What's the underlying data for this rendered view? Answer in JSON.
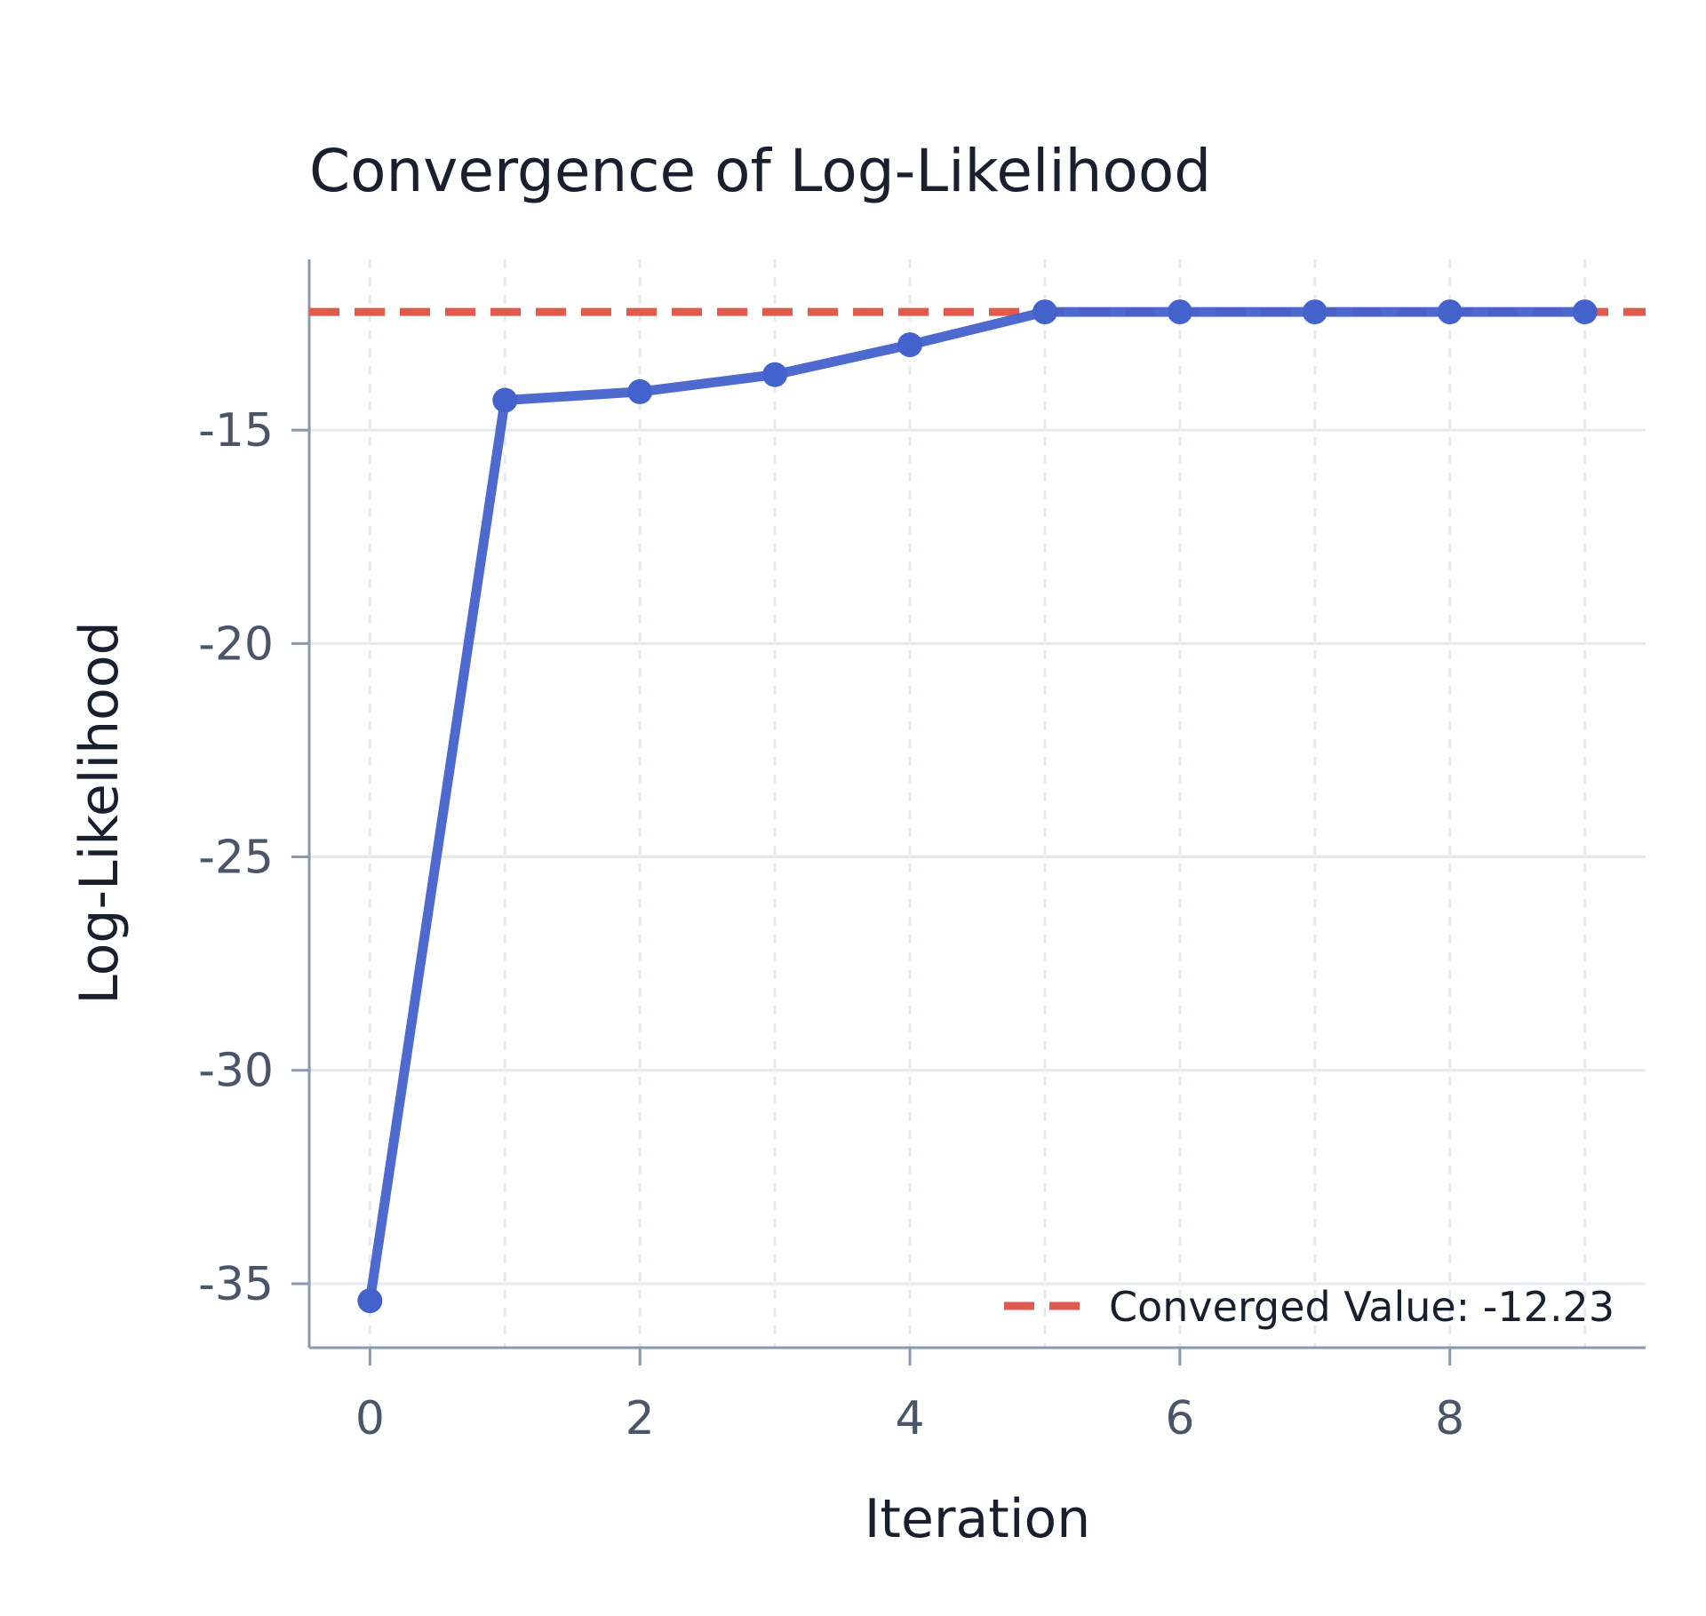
{
  "chart_data": {
    "type": "line",
    "title": "Convergence of Log-Likelihood",
    "xlabel": "Iteration",
    "ylabel": "Log-Likelihood",
    "x": [
      0,
      1,
      2,
      3,
      4,
      5,
      6,
      7,
      8,
      9
    ],
    "series": [
      {
        "values": [
          -35.4,
          -14.3,
          -14.1,
          -13.7,
          -13.0,
          -12.23,
          -12.23,
          -12.23,
          -12.23,
          -12.23
        ],
        "color": "#4462cc"
      }
    ],
    "reference_line": {
      "label": "Converged Value: -12.23",
      "value": -12.23,
      "color": "#e05a4e",
      "style": "dashed"
    },
    "xticks": [
      0,
      2,
      4,
      6,
      8
    ],
    "yticks": [
      -15,
      -20,
      -25,
      -30,
      -35
    ],
    "xlim": [
      -0.45,
      9.45
    ],
    "ylim": [
      -36.5,
      -11.0
    ],
    "grid": true,
    "legend_position": "bottom-right",
    "colors": {
      "axis": "#8a99ad",
      "grid": "#e6eaee",
      "series": "#4462cc",
      "reference": "#e05a4e"
    }
  }
}
